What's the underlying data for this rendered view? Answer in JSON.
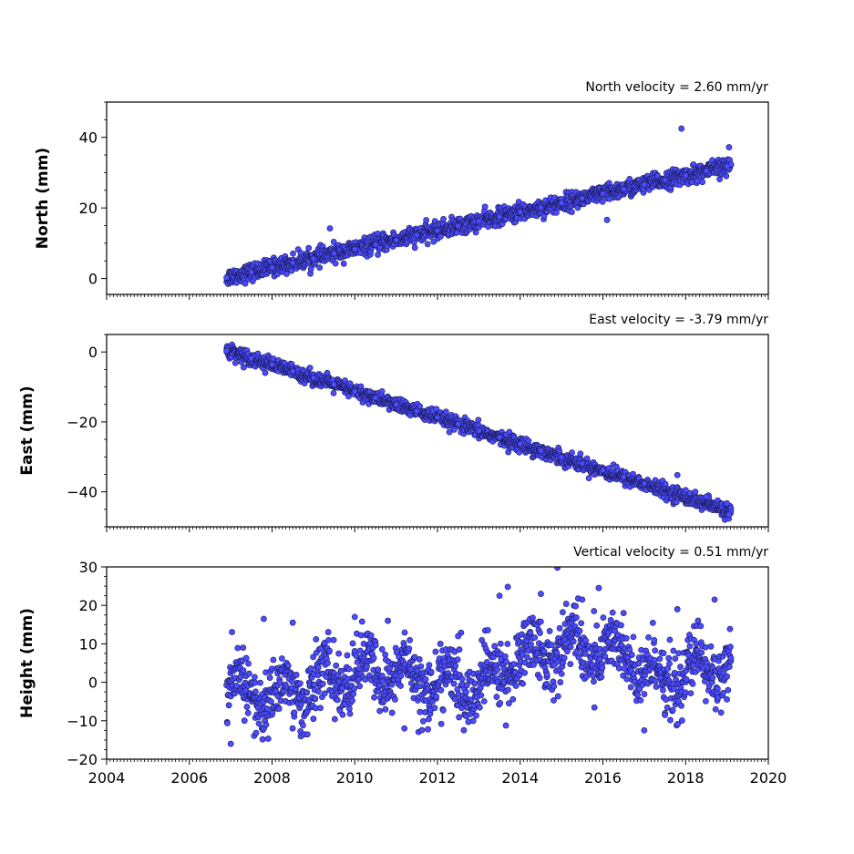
{
  "chart_data": [
    {
      "type": "scatter",
      "id": "north",
      "annotation": "North velocity = 2.60 mm/yr",
      "ylabel": "North (mm)",
      "xlabel": "",
      "xlim": [
        2004,
        2020
      ],
      "ylim": [
        -4.5,
        50
      ],
      "yticks": [
        0,
        20,
        40
      ],
      "xticks": [
        2004,
        2006,
        2008,
        2010,
        2012,
        2014,
        2016,
        2018,
        2020
      ],
      "show_xticklabels": false,
      "grid": false,
      "series": [
        {
          "velocity_mm_per_yr": 2.6,
          "start_value": 0.3,
          "start_year": 2006.9,
          "end_year": 2019.1,
          "scatter_mm": 1.2,
          "points": [
            [
              2006.9,
              0.2
            ],
            [
              2007.5,
              1.8
            ],
            [
              2008.0,
              3.1
            ],
            [
              2008.5,
              4.5
            ],
            [
              2009.0,
              5.6
            ],
            [
              2009.4,
              14.2
            ],
            [
              2009.5,
              7.1
            ],
            [
              2010.0,
              8.3
            ],
            [
              2010.5,
              9.6
            ],
            [
              2011.0,
              10.9
            ],
            [
              2011.5,
              12.3
            ],
            [
              2012.0,
              13.6
            ],
            [
              2012.5,
              14.9
            ],
            [
              2013.0,
              16.2
            ],
            [
              2013.5,
              17.5
            ],
            [
              2014.0,
              18.8
            ],
            [
              2014.5,
              20.1
            ],
            [
              2015.0,
              21.4
            ],
            [
              2015.5,
              22.7
            ],
            [
              2016.0,
              24.0
            ],
            [
              2016.1,
              16.6
            ],
            [
              2016.5,
              25.3
            ],
            [
              2017.0,
              26.6
            ],
            [
              2017.5,
              27.9
            ],
            [
              2017.9,
              42.5
            ],
            [
              2018.0,
              29.2
            ],
            [
              2018.5,
              30.5
            ],
            [
              2019.0,
              31.8
            ],
            [
              2019.05,
              37.2
            ]
          ]
        }
      ]
    },
    {
      "type": "scatter",
      "id": "east",
      "annotation": "East velocity = -3.79 mm/yr",
      "ylabel": "East (mm)",
      "xlabel": "",
      "xlim": [
        2004,
        2020
      ],
      "ylim": [
        -50,
        5
      ],
      "yticks": [
        0,
        -20,
        -40
      ],
      "xticks": [
        2004,
        2006,
        2008,
        2010,
        2012,
        2014,
        2016,
        2018,
        2020
      ],
      "show_xticklabels": false,
      "grid": false,
      "series": [
        {
          "velocity_mm_per_yr": -3.79,
          "start_value": 0.5,
          "start_year": 2006.9,
          "end_year": 2019.1,
          "scatter_mm": 1.0,
          "points": [
            [
              2006.9,
              0.3
            ],
            [
              2007.5,
              -1.8
            ],
            [
              2008.0,
              -3.6
            ],
            [
              2008.5,
              -5.5
            ],
            [
              2009.0,
              -7.4
            ],
            [
              2009.5,
              -9.3
            ],
            [
              2010.0,
              -11.2
            ],
            [
              2010.5,
              -13.1
            ],
            [
              2011.0,
              -15.0
            ],
            [
              2011.5,
              -16.9
            ],
            [
              2012.0,
              -18.7
            ],
            [
              2012.5,
              -20.6
            ],
            [
              2013.0,
              -22.5
            ],
            [
              2013.5,
              -24.4
            ],
            [
              2014.0,
              -26.3
            ],
            [
              2014.5,
              -28.2
            ],
            [
              2015.0,
              -30.1
            ],
            [
              2015.5,
              -31.9
            ],
            [
              2016.0,
              -33.8
            ],
            [
              2016.5,
              -35.7
            ],
            [
              2017.0,
              -37.6
            ],
            [
              2017.8,
              -35.2
            ],
            [
              2018.0,
              -39.5
            ],
            [
              2018.5,
              -41.4
            ],
            [
              2019.0,
              -43.3
            ],
            [
              2019.05,
              -46.5
            ]
          ]
        }
      ]
    },
    {
      "type": "scatter",
      "id": "height",
      "annotation": "Vertical velocity = 0.51 mm/yr",
      "ylabel": "Height (mm)",
      "xlabel": "",
      "xlim": [
        2004,
        2020
      ],
      "ylim": [
        -20,
        30
      ],
      "yticks": [
        -20,
        -10,
        0,
        10,
        20,
        30
      ],
      "xticks": [
        2004,
        2006,
        2008,
        2010,
        2012,
        2014,
        2016,
        2018,
        2020
      ],
      "show_xticklabels": true,
      "grid": false,
      "series": [
        {
          "velocity_mm_per_yr": 0.51,
          "start_value": -1.5,
          "start_year": 2006.9,
          "end_year": 2019.1,
          "scatter_mm": 5.5,
          "points": [
            [
              2007.0,
              -16.0
            ],
            [
              2007.3,
              9.0
            ],
            [
              2007.8,
              16.5
            ],
            [
              2008.5,
              15.5
            ],
            [
              2009.0,
              -9.5
            ],
            [
              2010.0,
              17.0
            ],
            [
              2010.8,
              16.0
            ],
            [
              2011.2,
              -12.0
            ],
            [
              2011.8,
              4.5
            ],
            [
              2012.5,
              12.0
            ],
            [
              2013.5,
              22.5
            ],
            [
              2013.7,
              24.8
            ],
            [
              2014.5,
              23.0
            ],
            [
              2014.9,
              29.8
            ],
            [
              2015.5,
              21.5
            ],
            [
              2015.9,
              24.5
            ],
            [
              2016.5,
              18.0
            ],
            [
              2017.0,
              -12.5
            ],
            [
              2017.5,
              -8.5
            ],
            [
              2017.8,
              19.0
            ],
            [
              2018.3,
              16.0
            ],
            [
              2018.7,
              21.5
            ],
            [
              2019.0,
              1.5
            ]
          ]
        }
      ]
    }
  ],
  "colors": {
    "marker_fill": "#4b4bff",
    "marker_edge": "#1a1a55",
    "axes": "#000000"
  }
}
